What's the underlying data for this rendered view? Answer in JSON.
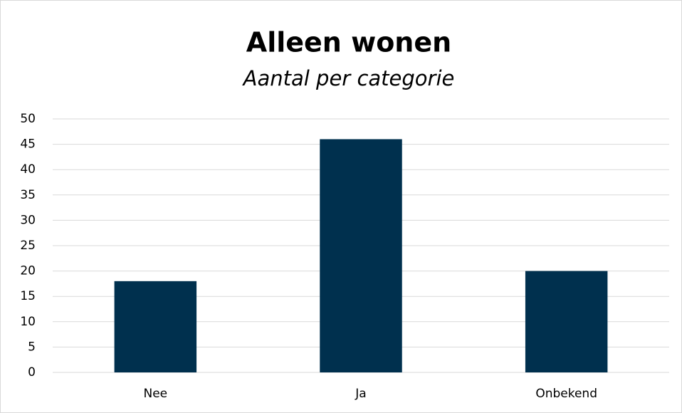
{
  "chart_data": {
    "type": "bar",
    "title": "Alleen wonen",
    "subtitle": "Aantal per categorie",
    "categories": [
      "Nee",
      "Ja",
      "Onbekend"
    ],
    "values": [
      18,
      46,
      20
    ],
    "color": "#00304e",
    "ylim": [
      0,
      50
    ],
    "yticks": [
      0,
      5,
      10,
      15,
      20,
      25,
      30,
      35,
      40,
      45,
      50
    ],
    "grid": true
  }
}
